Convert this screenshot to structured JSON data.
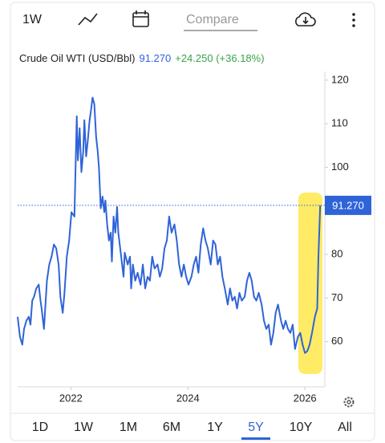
{
  "toolbar": {
    "interval": "1W",
    "compare": "Compare"
  },
  "chart_data": {
    "type": "line",
    "title": "Crude Oil WTI (USD/Bbl)",
    "last_value_label": "91.270",
    "change": "+24.250 (+36.18%)",
    "x": [
      2021.09,
      2021.13,
      2021.17,
      2021.2,
      2021.24,
      2021.28,
      2021.31,
      2021.34,
      2021.37,
      2021.41,
      2021.45,
      2021.48,
      2021.5,
      2021.54,
      2021.59,
      2021.63,
      2021.67,
      2021.71,
      2021.75,
      2021.79,
      2021.82,
      2021.86,
      2021.89,
      2021.93,
      2021.97,
      2022.01,
      2022.06,
      2022.1,
      2022.12,
      2022.15,
      2022.18,
      2022.21,
      2022.23,
      2022.26,
      2022.29,
      2022.32,
      2022.34,
      2022.37,
      2022.4,
      2022.43,
      2022.46,
      2022.48,
      2022.51,
      2022.54,
      2022.57,
      2022.59,
      2022.62,
      2022.65,
      2022.68,
      2022.7,
      2022.73,
      2022.76,
      2022.79,
      2022.81,
      2022.86,
      2022.9,
      2022.92,
      2022.97,
      2023.01,
      2023.03,
      2023.06,
      2023.1,
      2023.14,
      2023.19,
      2023.23,
      2023.27,
      2023.31,
      2023.35,
      2023.39,
      2023.43,
      2023.48,
      2023.52,
      2023.56,
      2023.6,
      2023.64,
      2023.68,
      2023.72,
      2023.77,
      2023.81,
      2023.85,
      2023.89,
      2023.93,
      2023.97,
      2024.01,
      2024.06,
      2024.1,
      2024.14,
      2024.18,
      2024.22,
      2024.26,
      2024.3,
      2024.34,
      2024.39,
      2024.43,
      2024.47,
      2024.51,
      2024.55,
      2024.59,
      2024.63,
      2024.68,
      2024.72,
      2024.76,
      2024.8,
      2024.84,
      2024.88,
      2024.92,
      2024.97,
      2025.01,
      2025.05,
      2025.09,
      2025.13,
      2025.17,
      2025.21,
      2025.26,
      2025.3,
      2025.34,
      2025.38,
      2025.42,
      2025.46,
      2025.5,
      2025.54,
      2025.59,
      2025.63,
      2025.67,
      2025.71,
      2025.75,
      2025.79,
      2025.83,
      2025.88,
      2025.92,
      2025.96,
      2026.0,
      2026.04,
      2026.08,
      2026.12,
      2026.17,
      2026.21,
      2026.23,
      2026.26
    ],
    "series": [
      {
        "name": "Crude Oil WTI",
        "color": "#2f64d8",
        "values": [
          65.7,
          61.1,
          59.3,
          62.9,
          64.8,
          65.7,
          63.9,
          69.4,
          70.3,
          72.2,
          73.1,
          69.4,
          67.6,
          62.9,
          74.0,
          77.7,
          79.5,
          82.3,
          81.4,
          77.7,
          70.3,
          66.6,
          71.2,
          79.5,
          83.2,
          89.7,
          88.7,
          111.7,
          101.6,
          109.0,
          98.9,
          103.5,
          110.8,
          102.5,
          106.2,
          110.8,
          112.7,
          116.0,
          114.5,
          107.1,
          103.5,
          99.8,
          90.6,
          93.3,
          89.7,
          92.4,
          86.9,
          83.2,
          85.0,
          78.4,
          88.7,
          85.0,
          90.9,
          85.0,
          79.5,
          74.9,
          80.4,
          77.7,
          79.5,
          72.2,
          77.7,
          74.0,
          75.8,
          73.1,
          77.7,
          72.2,
          74.9,
          74.0,
          79.5,
          76.8,
          77.7,
          74.9,
          76.8,
          81.4,
          83.2,
          88.7,
          85.0,
          86.9,
          83.2,
          77.7,
          74.9,
          77.7,
          74.9,
          73.1,
          74.9,
          77.7,
          79.5,
          75.8,
          82.3,
          86.0,
          83.2,
          81.4,
          77.7,
          83.2,
          82.3,
          77.7,
          79.5,
          74.9,
          72.2,
          68.5,
          72.2,
          69.4,
          70.3,
          67.6,
          71.2,
          69.4,
          70.3,
          74.0,
          75.8,
          74.0,
          70.3,
          69.4,
          71.2,
          68.5,
          64.8,
          62.9,
          63.9,
          59.3,
          62.0,
          66.6,
          68.5,
          64.8,
          62.9,
          64.8,
          62.9,
          62.0,
          63.9,
          58.3,
          61.1,
          62.0,
          59.3,
          57.4,
          57.8,
          59.3,
          62.0,
          65.7,
          67.6,
          79.5,
          91.27
        ]
      }
    ],
    "xlim": [
      2021.09,
      2026.34
    ],
    "xticks": [
      2022,
      2024,
      2026
    ],
    "ylim": [
      50,
      122
    ],
    "yticks": [
      60,
      70,
      80,
      100,
      110,
      120
    ],
    "grid": false
  },
  "ranges": [
    "1D",
    "1W",
    "1M",
    "6M",
    "1Y",
    "5Y",
    "10Y",
    "All"
  ],
  "selected_range": "5Y"
}
